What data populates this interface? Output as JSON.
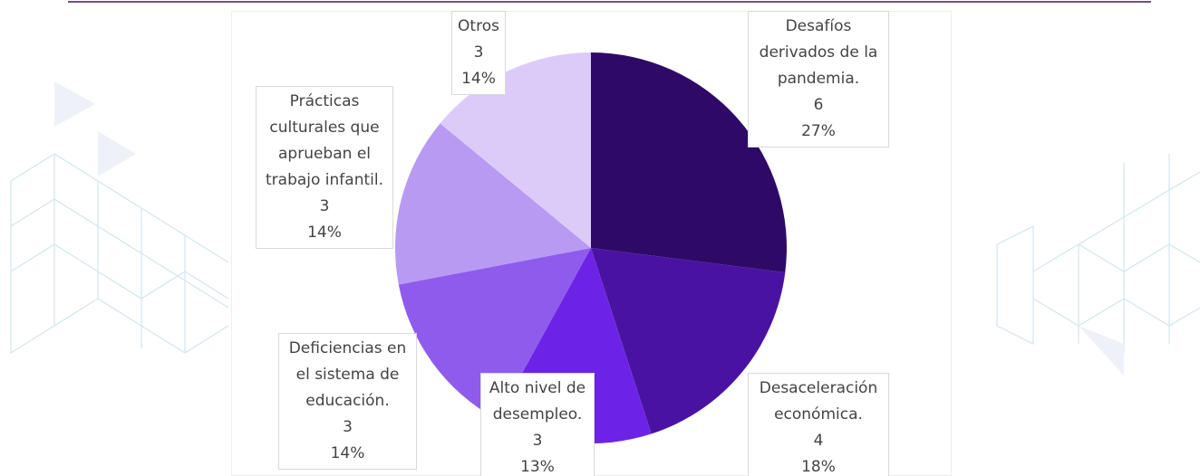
{
  "chart_data": {
    "type": "pie",
    "categories": [
      "Desafíos derivados de la pandemia.",
      "Desaceleración económica.",
      "Alto nivel de desempleo.",
      "Deficiencias en el sistema de educación.",
      "Prácticas culturales que aprueban el trabajo infantil.",
      "Otros"
    ],
    "values": [
      27,
      18,
      13,
      14,
      14,
      14
    ],
    "value_labels": [
      "27%",
      "18%",
      "13%",
      "14%",
      "14%",
      "14%"
    ],
    "counts": [
      6,
      4,
      3,
      3,
      3,
      3
    ],
    "colors": [
      "#2e0a66",
      "#4a12a3",
      "#6d23e6",
      "#8f5bed",
      "#b89af3",
      "#dccbf9"
    ]
  }
}
